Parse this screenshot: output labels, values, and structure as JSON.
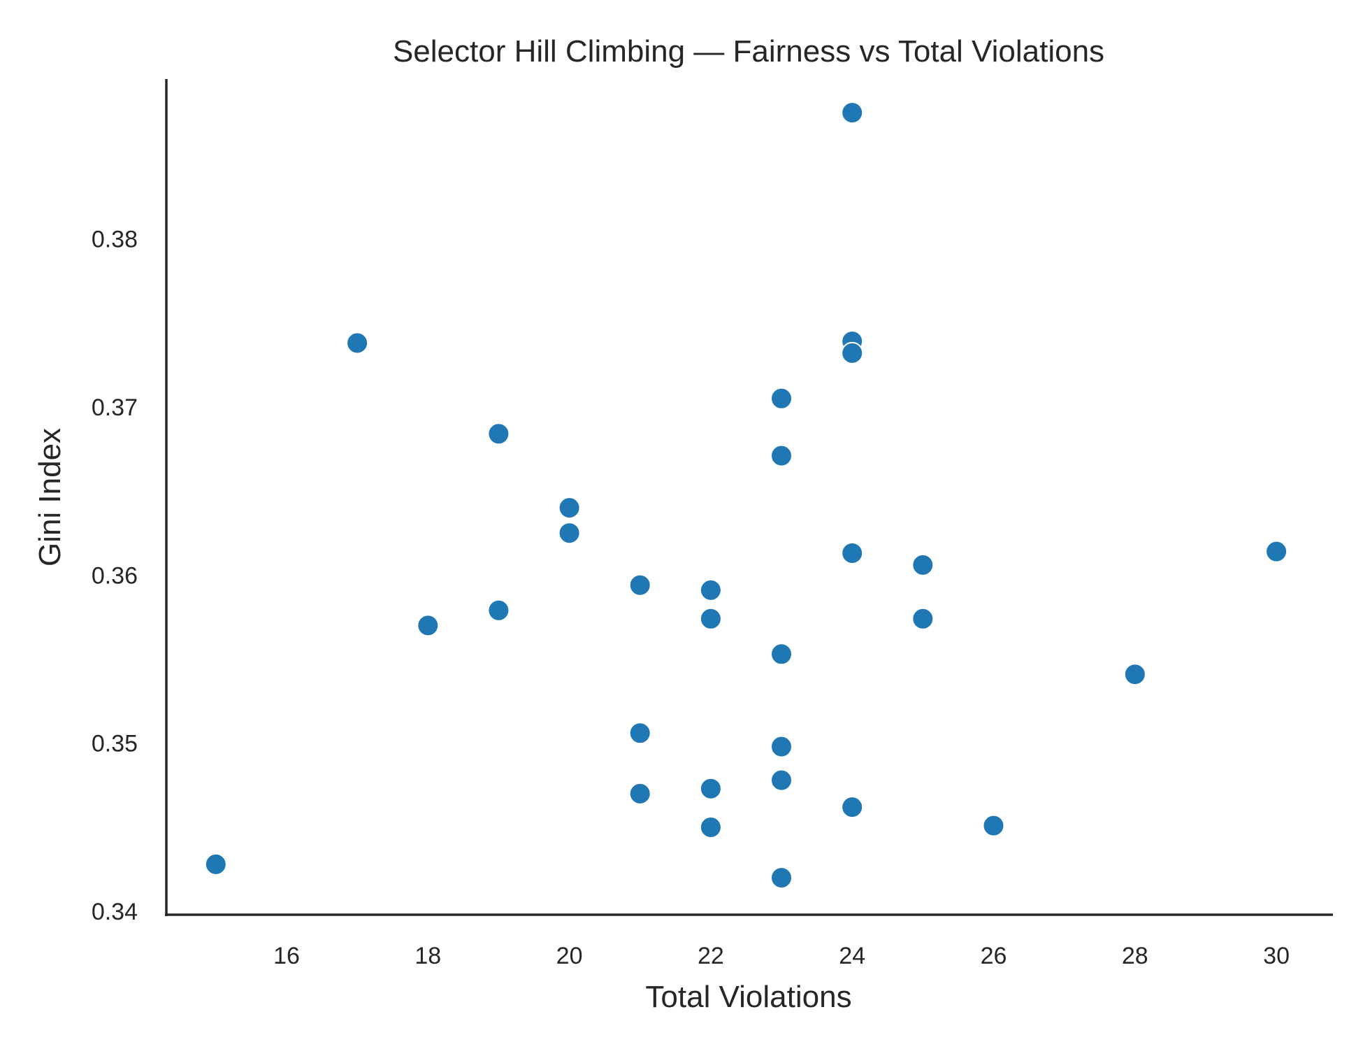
{
  "chart_data": {
    "type": "scatter",
    "title": "Selector Hill Climbing — Fairness vs Total Violations",
    "xlabel": "Total Violations",
    "ylabel": "Gini Index",
    "xlim": [
      14.3,
      30.8
    ],
    "ylim": [
      0.3398,
      0.3895
    ],
    "xticks": [
      16,
      18,
      20,
      22,
      24,
      26,
      28,
      30
    ],
    "yticks": [
      0.34,
      0.35,
      0.36,
      0.37,
      0.38
    ],
    "grid": false,
    "point_color": "#1f77b4",
    "series": [
      {
        "points": [
          {
            "x": 15,
            "y": 0.3428
          },
          {
            "x": 17,
            "y": 0.3738
          },
          {
            "x": 18,
            "y": 0.357
          },
          {
            "x": 19,
            "y": 0.3684
          },
          {
            "x": 19,
            "y": 0.3579
          },
          {
            "x": 20,
            "y": 0.364
          },
          {
            "x": 20,
            "y": 0.3625
          },
          {
            "x": 21,
            "y": 0.3594
          },
          {
            "x": 21,
            "y": 0.3506
          },
          {
            "x": 21,
            "y": 0.347
          },
          {
            "x": 22,
            "y": 0.3591
          },
          {
            "x": 22,
            "y": 0.3574
          },
          {
            "x": 22,
            "y": 0.3473
          },
          {
            "x": 22,
            "y": 0.345
          },
          {
            "x": 23,
            "y": 0.3705
          },
          {
            "x": 23,
            "y": 0.3671
          },
          {
            "x": 23,
            "y": 0.3553
          },
          {
            "x": 23,
            "y": 0.3498
          },
          {
            "x": 23,
            "y": 0.3478
          },
          {
            "x": 23,
            "y": 0.342
          },
          {
            "x": 24,
            "y": 0.3875
          },
          {
            "x": 24,
            "y": 0.3739
          },
          {
            "x": 24,
            "y": 0.3732
          },
          {
            "x": 24,
            "y": 0.3613
          },
          {
            "x": 24,
            "y": 0.3462
          },
          {
            "x": 25,
            "y": 0.3606
          },
          {
            "x": 25,
            "y": 0.3574
          },
          {
            "x": 26,
            "y": 0.3451
          },
          {
            "x": 28,
            "y": 0.3541
          },
          {
            "x": 30,
            "y": 0.3614
          }
        ]
      }
    ]
  }
}
